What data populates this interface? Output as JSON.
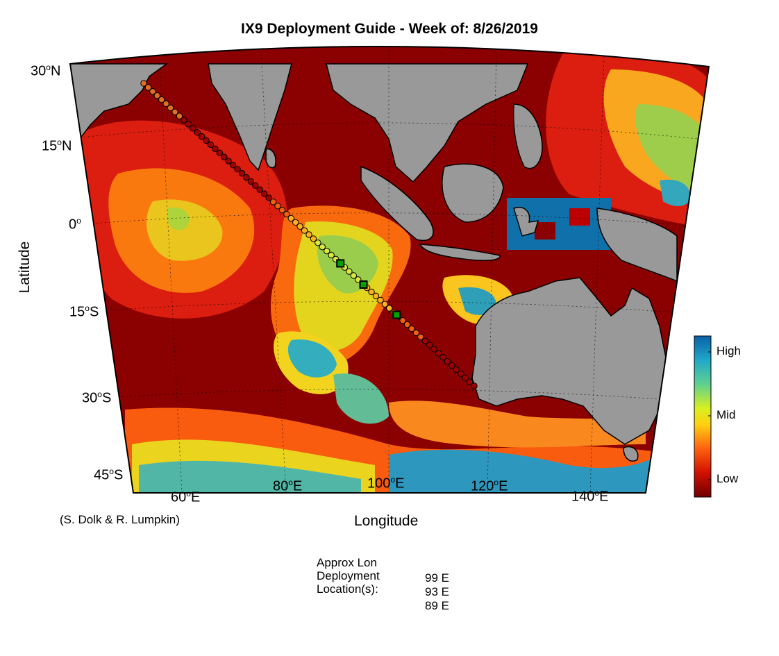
{
  "figure": {
    "title": "IX9 Deployment Guide - Week of: 8/26/2019",
    "xlabel": "Longitude",
    "ylabel": "Latitude",
    "credit": "(S. Dolk & R. Lumpkin)"
  },
  "lat_labels": [
    {
      "text": "30",
      "hemi": "N"
    },
    {
      "text": "15",
      "hemi": "N"
    },
    {
      "text": "0",
      "hemi": ""
    },
    {
      "text": "15",
      "hemi": "S"
    },
    {
      "text": "30",
      "hemi": "S"
    },
    {
      "text": "45",
      "hemi": "S"
    }
  ],
  "lon_labels": [
    {
      "text": "60",
      "hemi": "E"
    },
    {
      "text": "80",
      "hemi": "E"
    },
    {
      "text": "100",
      "hemi": "E"
    },
    {
      "text": "120",
      "hemi": "E"
    },
    {
      "text": "140",
      "hemi": "E"
    }
  ],
  "colorbar": {
    "labels": [
      "High",
      "Mid",
      "Low"
    ],
    "colors": [
      "#0a78b4",
      "#2ab8c0",
      "#7ad470",
      "#e8f020",
      "#ffb010",
      "#f04010",
      "#c00000",
      "#800000"
    ]
  },
  "deployment": {
    "heading_lines": [
      "Approx Lon",
      "Deployment",
      "Location(s):"
    ],
    "values": [
      "99 E",
      "93 E",
      "89 E"
    ]
  },
  "map": {
    "land_color": "#999999",
    "ocean_low_color": "#8b0000",
    "track_color": "#000000",
    "marker_color": "#00a000",
    "deploy_markers_lon": [
      89,
      93,
      99
    ]
  }
}
